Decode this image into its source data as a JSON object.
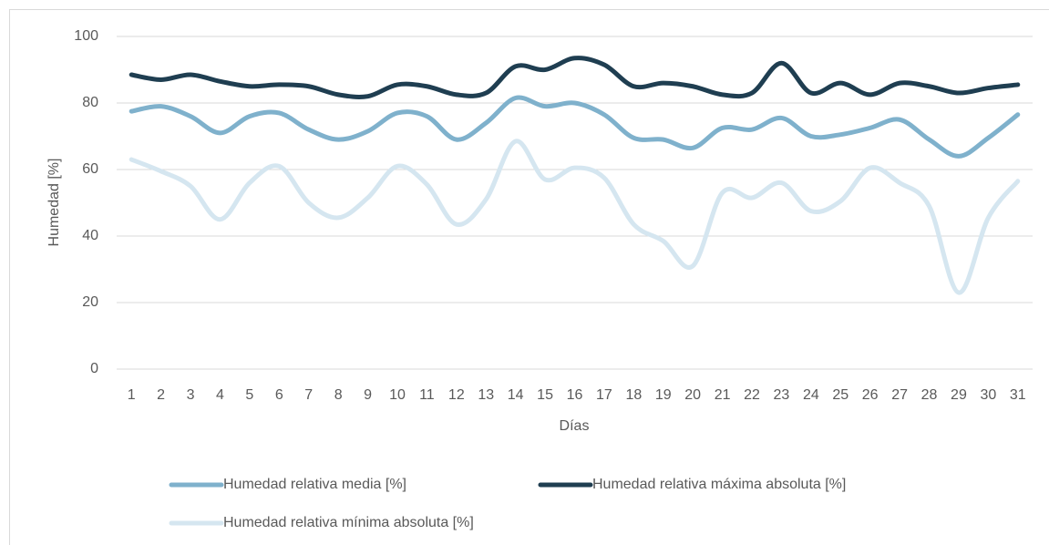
{
  "chart_data": {
    "type": "line",
    "xlabel": "Días",
    "ylabel": "Humedad [%]",
    "categories": [
      1,
      2,
      3,
      4,
      5,
      6,
      7,
      8,
      9,
      10,
      11,
      12,
      13,
      14,
      15,
      16,
      17,
      18,
      19,
      20,
      21,
      22,
      23,
      24,
      25,
      26,
      27,
      28,
      29,
      30,
      31
    ],
    "series": [
      {
        "name": "Humedad relativa media [%]",
        "color": "#7fb1cc",
        "values": [
          77.5,
          79,
          76,
          71,
          76,
          77,
          72,
          69,
          71.5,
          77,
          76,
          69,
          74,
          81.5,
          79,
          80,
          76.5,
          69.5,
          69,
          66.5,
          72.5,
          72,
          75.5,
          70,
          70.5,
          72.5,
          75,
          69,
          64,
          69.5,
          76.5
        ]
      },
      {
        "name": "Humedad relativa máxima absoluta [%]",
        "color": "#1f3e51",
        "values": [
          88.5,
          87,
          88.5,
          86.5,
          85,
          85.5,
          85,
          82.5,
          82,
          85.5,
          85,
          82.5,
          83,
          91,
          90,
          93.5,
          91.5,
          85,
          86,
          85,
          82.5,
          83,
          92,
          83,
          86,
          82.5,
          86,
          85,
          83,
          84.5,
          85.5
        ]
      },
      {
        "name": "Humedad relativa mínima absoluta [%]",
        "color": "#d5e6f0",
        "values": [
          63,
          59.5,
          55,
          45,
          56,
          61,
          50,
          45.5,
          51.5,
          61,
          55.5,
          43.5,
          51,
          68.5,
          57,
          60.5,
          57.5,
          43.5,
          38.5,
          31,
          53,
          51.5,
          56,
          47.5,
          50.5,
          60.5,
          56,
          49,
          23,
          45.5,
          56.5
        ]
      }
    ],
    "ylim": [
      0,
      100
    ],
    "yticks": [
      0,
      20,
      40,
      60,
      80,
      100
    ],
    "grid": true,
    "smooth": true,
    "legend": "bottom"
  }
}
